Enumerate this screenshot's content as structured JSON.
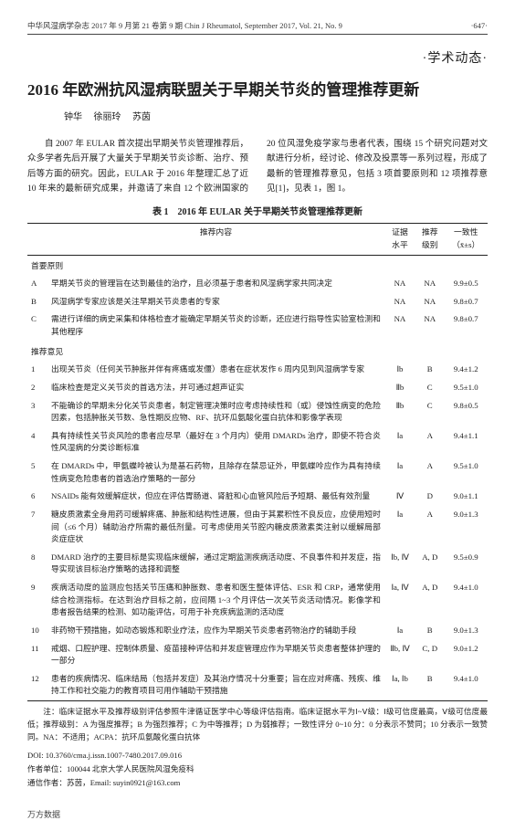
{
  "running_head_left": "中华风湿病学杂志 2017 年 9 月第 21 卷第 9 期 Chin J Rheumatol, September 2017, Vol. 21, No. 9",
  "page_num": "·647·",
  "kicker": "·学术动态·",
  "title": "2016 年欧洲抗风湿病联盟关于早期关节炎的管理推荐更新",
  "authors": [
    "钟华",
    "徐丽玲",
    "苏茵"
  ],
  "intro_col1": "自 2007 年 EULAR 首次提出早期关节炎管理推荐后，众多学者先后开展了大量关于早期关节炎诊断、治疗、预后等方面的研究。因此，EULAR 于 2016 年整理汇总了近 10 年来的最新研究成果，并邀请了来自 12 个欧洲国家的 20 位风湿",
  "intro_col2": "免疫学家与患者代表，围绕 15 个研究问题对文献进行分析，经讨论、修改及投票等一系列过程，形成了最新的管理推荐意见，包括 3 项首要原则和 12 项推荐意见[1]，见表 1，图 1。",
  "table_caption": "表 1　2016 年 EULAR 关于早期关节炎管理推荐更新",
  "columns": {
    "content_label": "推荐内容",
    "evidence_label": "证据水平",
    "grade_label": "推荐级别",
    "agree_label": "一致性（x̄±s）"
  },
  "section_a_label": "首要原则",
  "principles": [
    {
      "key": "A",
      "content": "早期关节炎的管理旨在达到最佳的治疗，且必须基于患者和风湿病学家共同决定",
      "evidence": "NA",
      "grade": "NA",
      "agree": "9.9±0.5"
    },
    {
      "key": "B",
      "content": "风湿病学专家应该是关注早期关节炎患者的专家",
      "evidence": "NA",
      "grade": "NA",
      "agree": "9.8±0.7"
    },
    {
      "key": "C",
      "content": "需进行详细的病史采集和体格检查才能确定早期关节炎的诊断，还应进行指导性实验室检测和其他程序",
      "evidence": "NA",
      "grade": "NA",
      "agree": "9.8±0.7"
    }
  ],
  "section_b_label": "推荐意见",
  "recommendations": [
    {
      "key": "1",
      "content": "出现关节炎（任何关节肿胀并伴有疼痛或发僵）患者在症状发作 6 周内见到风湿病学专家",
      "evidence": "Ⅰb",
      "grade": "B",
      "agree": "9.4±1.2"
    },
    {
      "key": "2",
      "content": "临床检查是定义关节炎的首选方法，并可通过超声证实",
      "evidence": "Ⅱb",
      "grade": "C",
      "agree": "9.5±1.0"
    },
    {
      "key": "3",
      "content": "不能确诊的早期未分化关节炎患者，制定管理决策时应考虑持续性和（或）侵蚀性病变的危险因素，包括肿胀关节数、急性期反应物、RF、抗环瓜氨酸化蛋白抗体和影像学表现",
      "evidence": "Ⅱb",
      "grade": "C",
      "agree": "9.8±0.5"
    },
    {
      "key": "4",
      "content": "具有持续性关节炎风险的患者应尽早（最好在 3 个月内）使用 DMARDs 治疗，即使不符合炎性风湿病的分类诊断标准",
      "evidence": "Ⅰa",
      "grade": "A",
      "agree": "9.4±1.1"
    },
    {
      "key": "5",
      "content": "在 DMARDs 中，甲氨蝶呤被认为是基石药物，且除存在禁忌证外，甲氨蝶呤应作为具有持续性病变危险患者的首选治疗策略的一部分",
      "evidence": "Ⅰa",
      "grade": "A",
      "agree": "9.5±1.0"
    },
    {
      "key": "6",
      "content": "NSAIDs 能有效缓解症状，但应在评估胃肠道、肾脏和心血管风险后予短期、最低有效剂量",
      "evidence": "Ⅳ",
      "grade": "D",
      "agree": "9.0±1.1"
    },
    {
      "key": "7",
      "content": "糖皮质激素全身用药可缓解疼痛、肿胀和结构性进展，但由于其累积性不良反应，应使用短时间（≤6 个月）辅助治疗所需的最低剂量。可考虑使用关节腔内糖皮质激素类注射以缓解局部炎症症状",
      "evidence": "Ⅰa",
      "grade": "A",
      "agree": "9.0±1.3"
    },
    {
      "key": "8",
      "content": "DMARD 治疗的主要目标是实现临床缓解，通过定期监测疾病活动度、不良事件和并发症，指导实现该目标治疗策略的选择和调整",
      "evidence": "Ⅰb, Ⅳ",
      "grade": "A, D",
      "agree": "9.5±0.9"
    },
    {
      "key": "9",
      "content": "疾病活动度的监测应包括关节压痛和肿胀数、患者和医生整体评估、ESR 和 CRP，通常使用综合检测指标。在达到治疗目标之前，应间隔 1~3 个月评估一次关节炎活动情况。影像学和患者报告结果的检测、如功能评估，可用于补充疾病监测的活动度",
      "evidence": "Ⅰa, Ⅳ",
      "grade": "A, D",
      "agree": "9.4±1.0"
    },
    {
      "key": "10",
      "content": "非药物干预措施，如动态锻炼和职业疗法，应作为早期关节炎患者药物治疗的辅助手段",
      "evidence": "Ⅰa",
      "grade": "B",
      "agree": "9.0±1.3"
    },
    {
      "key": "11",
      "content": "戒烟、口腔护理、控制体质量、疫苗接种评估和并发症管理应作为早期关节炎患者整体护理的一部分",
      "evidence": "Ⅱb, Ⅳ",
      "grade": "C, D",
      "agree": "9.0±1.2"
    },
    {
      "key": "12",
      "content": "患者的疾病情况、临床结局（包括并发症）及其治疗情况十分重要；旨在应对疼痛、残疾、维持工作和社交能力的教育项目可用作辅助干预措施",
      "evidence": "Ⅰa, Ⅰb",
      "grade": "B",
      "agree": "9.4±1.0"
    }
  ],
  "table_note": "注：临床证据水平及推荐级别评估参照牛津循证医学中心等级评估指南。临床证据水平为Ⅰ~Ⅴ级：Ⅰ级可信度最高，Ⅴ级可信度最低；推荐级别：A 为强度推荐；B 为强烈推荐；C 为中等推荐；D 为弱推荐；一致性评分 0~10 分：0 分表示不赞同；10 分表示一致赞同。NA：不适用；ACPA：抗环瓜氨酸化蛋白抗体",
  "doi": "DOI: 10.3760/cma.j.issn.1007-7480.2017.09.016",
  "author_unit": "作者单位：100044 北京大学人民医院风湿免疫科",
  "corresponding": "通信作者：苏茵，Email: suyin0921@163.com",
  "footer": "万方数据"
}
